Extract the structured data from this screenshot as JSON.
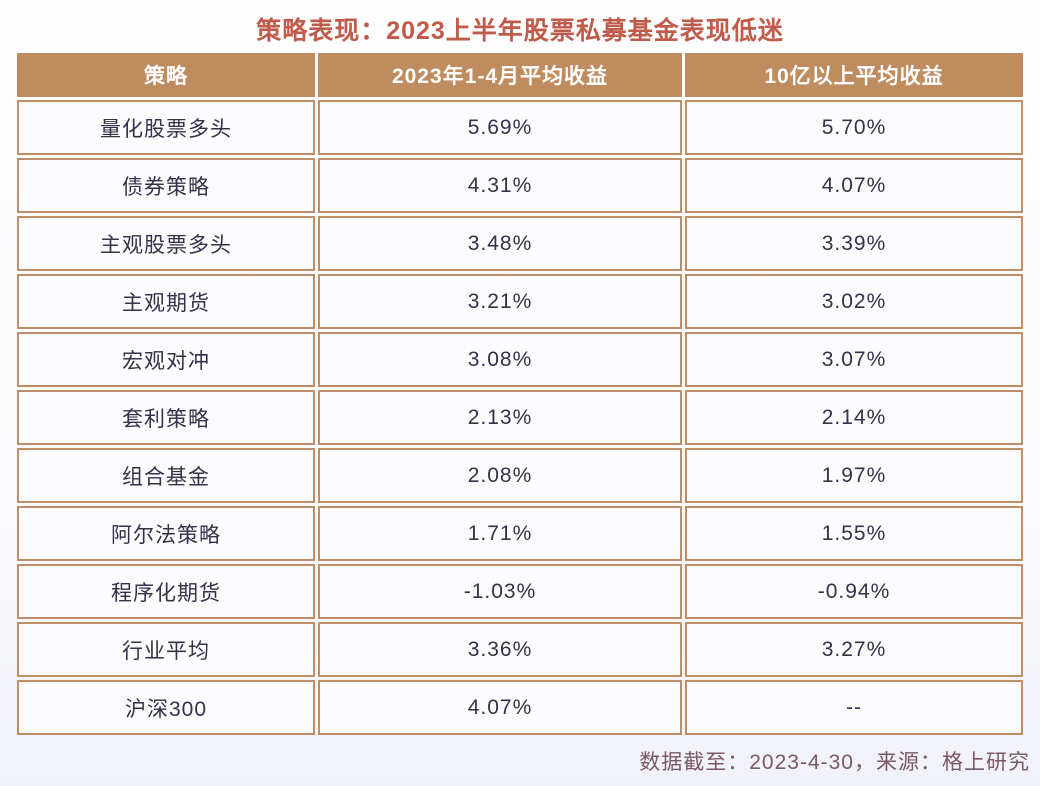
{
  "colors": {
    "title_text": "#C05A4A",
    "header_bg": "#BE8C5F",
    "header_text": "#FFFFFF",
    "cell_bg": "#FCFCFE",
    "cell_border": "#C08E66",
    "body_text": "#32324A",
    "source_text": "#7A5866"
  },
  "chart_data": {
    "type": "table",
    "title": "策略表现：2023上半年股票私募基金表现低迷",
    "columns": [
      "策略",
      "2023年1-4月平均收益",
      "10亿以上平均收益"
    ],
    "rows": [
      [
        "量化股票多头",
        "5.69%",
        "5.70%"
      ],
      [
        "债券策略",
        "4.31%",
        "4.07%"
      ],
      [
        "主观股票多头",
        "3.48%",
        "3.39%"
      ],
      [
        "主观期货",
        "3.21%",
        "3.02%"
      ],
      [
        "宏观对冲",
        "3.08%",
        "3.07%"
      ],
      [
        "套利策略",
        "2.13%",
        "2.14%"
      ],
      [
        "组合基金",
        "2.08%",
        "1.97%"
      ],
      [
        "阿尔法策略",
        "1.71%",
        "1.55%"
      ],
      [
        "程序化期货",
        "-1.03%",
        "-0.94%"
      ],
      [
        "行业平均",
        "3.36%",
        "3.27%"
      ],
      [
        "沪深300",
        "4.07%",
        "--"
      ]
    ],
    "source_note": "数据截至：2023-4-30，来源：格上研究"
  }
}
